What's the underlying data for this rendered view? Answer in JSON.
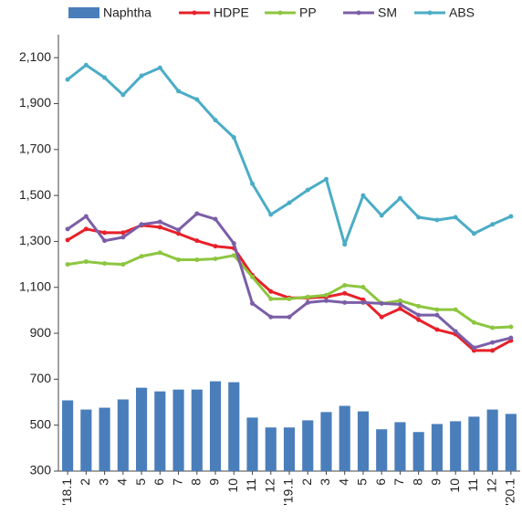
{
  "chart_data": {
    "type": "bar-line",
    "categories": [
      "'18.1",
      "2",
      "3",
      "4",
      "5",
      "6",
      "7",
      "8",
      "9",
      "10",
      "11",
      "12",
      "'19.1",
      "2",
      "3",
      "4",
      "5",
      "6",
      "7",
      "8",
      "9",
      "10",
      "11",
      "12",
      "'20.1"
    ],
    "series": [
      {
        "name": "Naphtha",
        "type": "bar",
        "color": "#4a7ebb",
        "values": [
          608,
          568,
          576,
          612,
          663,
          647,
          655,
          655,
          691,
          687,
          533,
          490,
          490,
          521,
          557,
          584,
          560,
          482,
          513,
          470,
          505,
          517,
          537,
          568,
          549
        ]
      },
      {
        "name": "HDPE",
        "type": "line",
        "color": "#e8202a",
        "values": [
          1306,
          1354,
          1338,
          1338,
          1370,
          1362,
          1334,
          1303,
          1279,
          1271,
          1153,
          1082,
          1054,
          1054,
          1058,
          1074,
          1046,
          971,
          1007,
          959,
          916,
          896,
          825,
          825,
          868
        ]
      },
      {
        "name": "PP",
        "type": "line",
        "color": "#8dc63f",
        "values": [
          1200,
          1212,
          1204,
          1200,
          1235,
          1251,
          1220,
          1220,
          1224,
          1239,
          1145,
          1050,
          1050,
          1058,
          1066,
          1109,
          1101,
          1030,
          1042,
          1018,
          1003,
          1003,
          947,
          924,
          928
        ]
      },
      {
        "name": "SM",
        "type": "line",
        "color": "#7b5ea7",
        "values": [
          1354,
          1409,
          1303,
          1318,
          1374,
          1385,
          1350,
          1421,
          1397,
          1291,
          1030,
          971,
          971,
          1034,
          1042,
          1034,
          1034,
          1030,
          1026,
          979,
          979,
          908,
          837,
          860,
          880
        ]
      },
      {
        "name": "ABS",
        "type": "line",
        "color": "#4bacc6",
        "values": [
          2005,
          2068,
          2013,
          1938,
          2021,
          2056,
          1954,
          1918,
          1828,
          1753,
          1551,
          1417,
          1468,
          1524,
          1571,
          1287,
          1500,
          1413,
          1488,
          1405,
          1393,
          1405,
          1334,
          1374,
          1409
        ]
      }
    ],
    "ylim": [
      300,
      2200
    ],
    "yticks": [
      300,
      500,
      700,
      900,
      {
        "value": 1100,
        "label": "1,100"
      },
      {
        "value": 1300,
        "label": "1,300"
      },
      {
        "value": 1500,
        "label": "1,500"
      },
      {
        "value": 1700,
        "label": "1,700"
      },
      {
        "value": 1900,
        "label": "1,900"
      },
      {
        "value": 2100,
        "label": "2,100"
      }
    ],
    "legend": "top",
    "grid": false
  }
}
